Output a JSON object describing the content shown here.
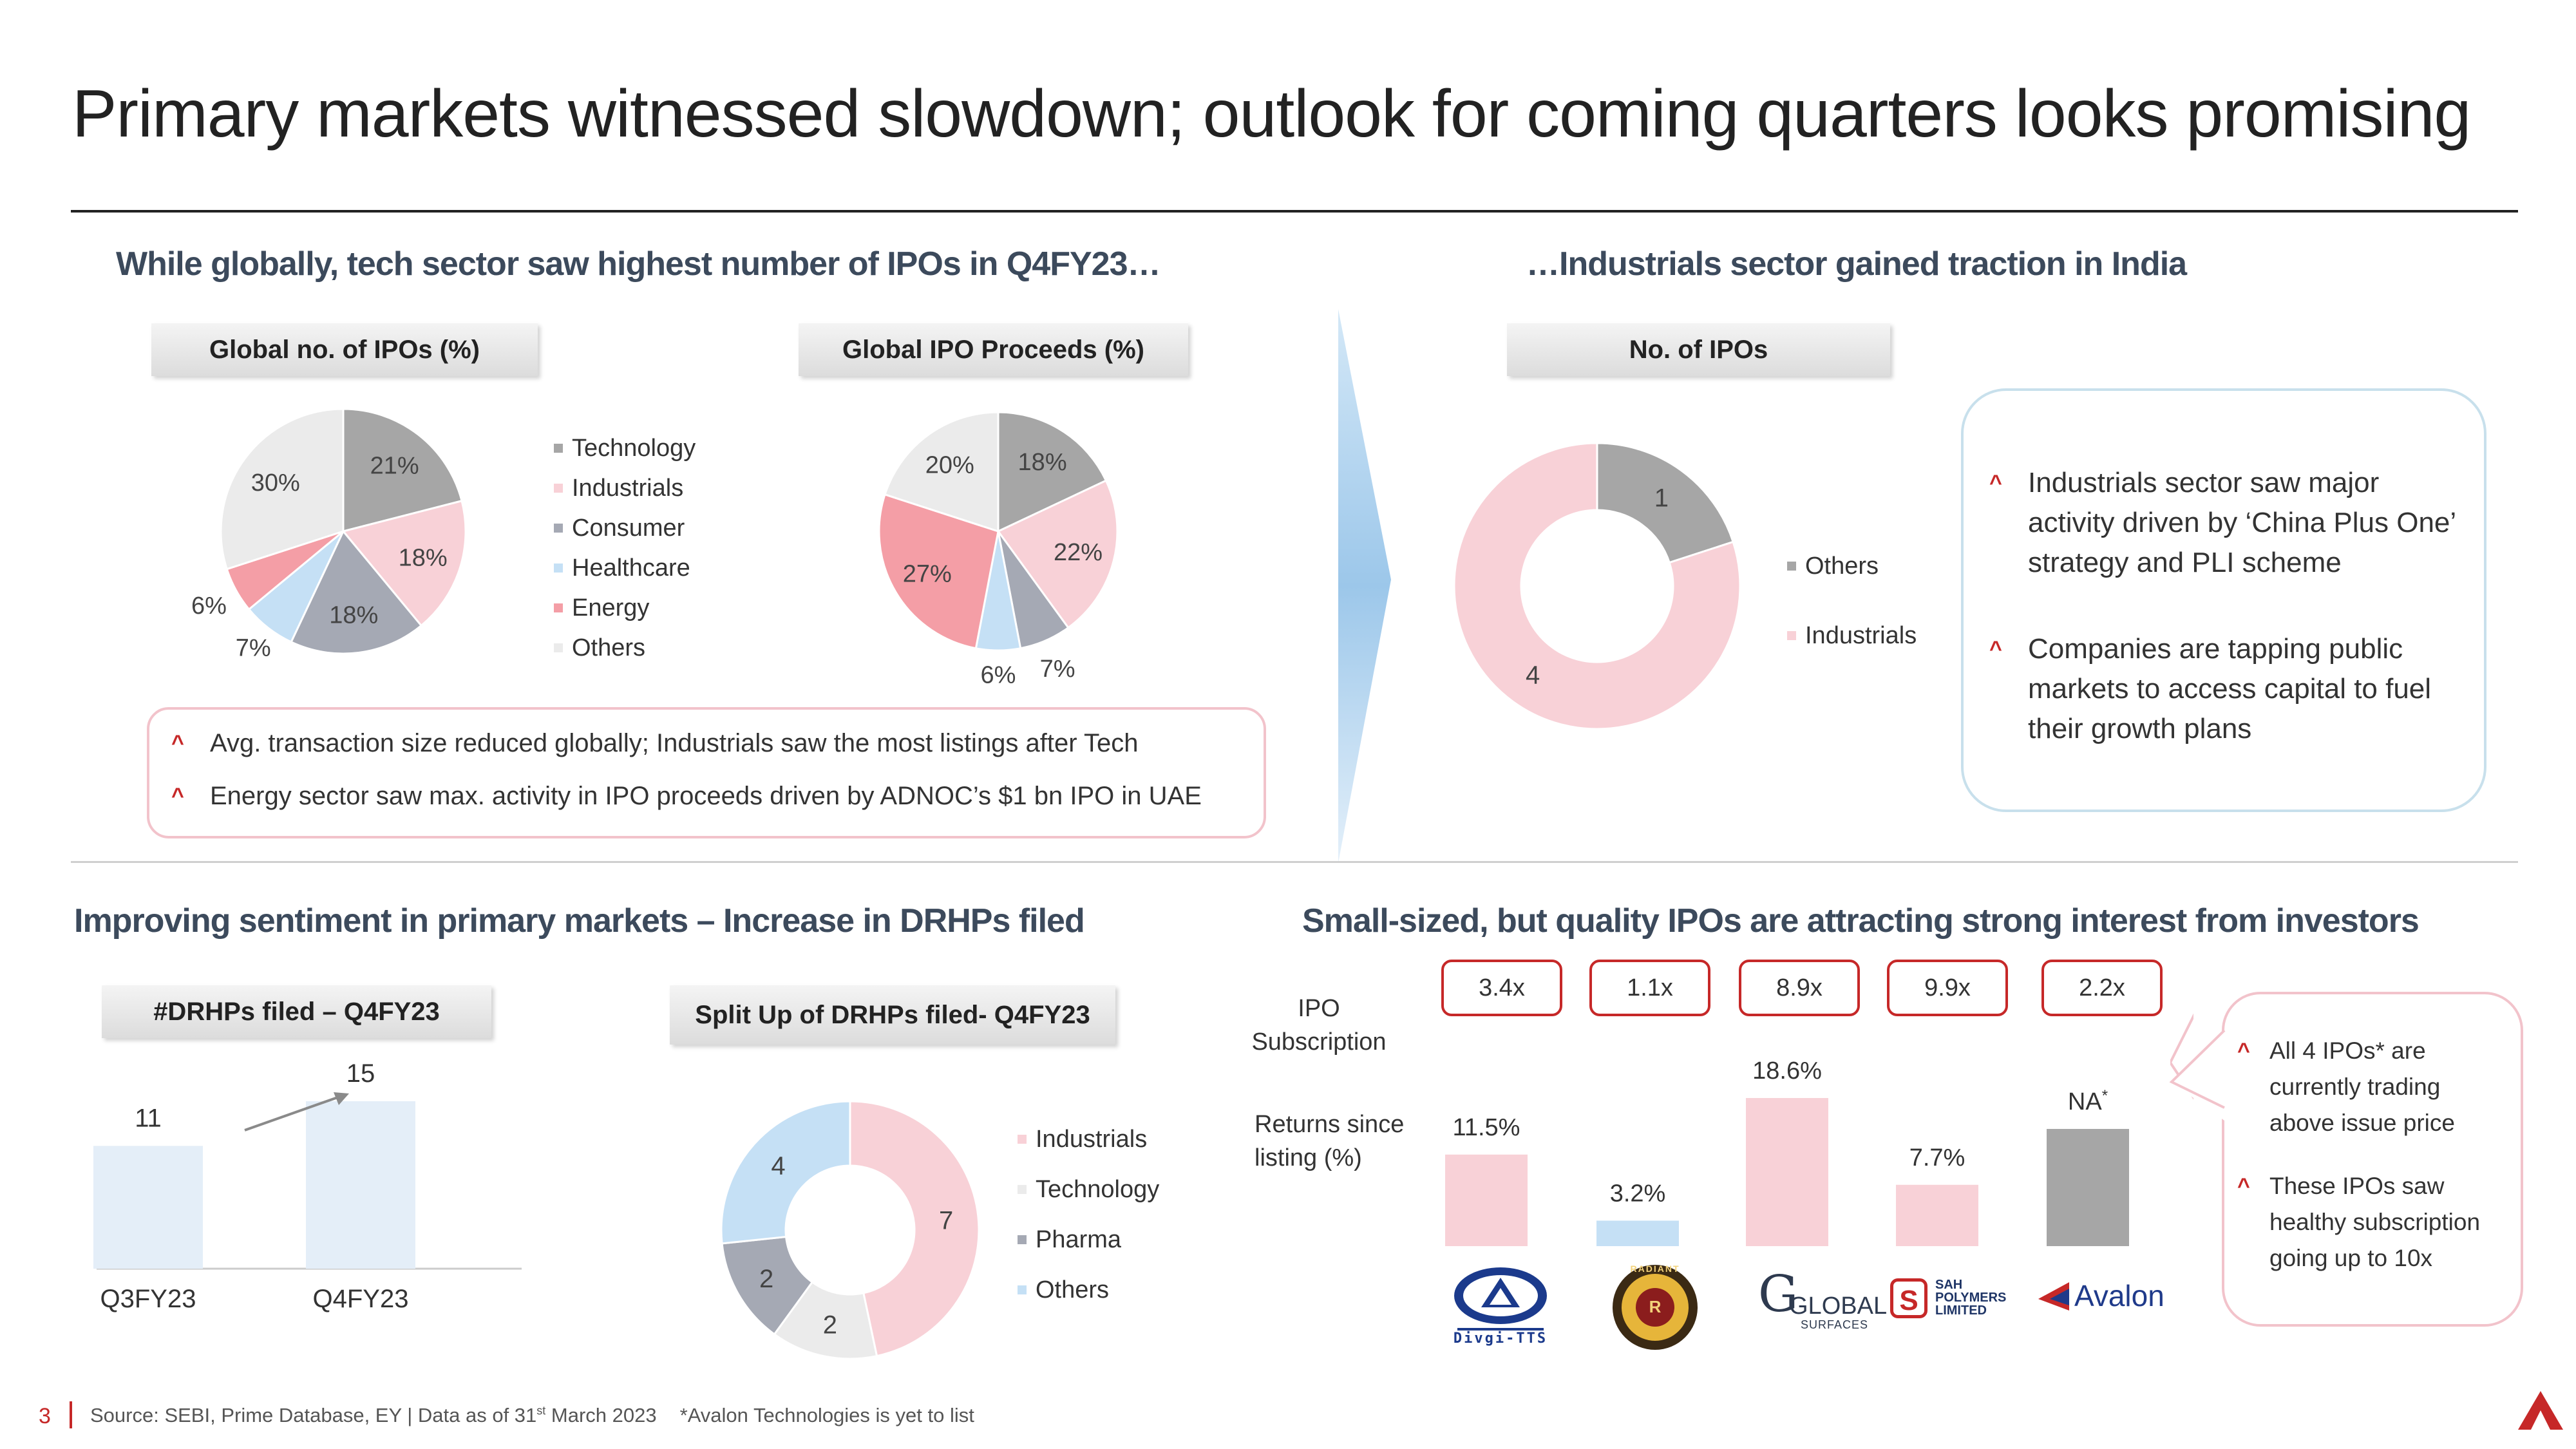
{
  "page": {
    "title": "Primary markets witnessed slowdown; outlook for coming quarters looks promising",
    "page_number": "3",
    "source_prefix": "Source: SEBI, Prime Database, EY | Data as of 31",
    "source_sup": "st",
    "source_suffix": " March 2023",
    "source_note": "*Avalon Technologies is yet to list"
  },
  "top_left": {
    "heading": "While globally, tech sector saw highest number of IPOs in Q4FY23…",
    "callout": [
      "Avg. transaction size reduced globally; Industrials saw the most listings after Tech",
      "Energy sector saw max. activity in IPO proceeds driven by ADNOC’s $1 bn IPO in UAE"
    ]
  },
  "top_right": {
    "heading": "…Industrials sector gained traction in India",
    "callout": [
      "Industrials sector saw major activity driven by ‘China Plus One’ strategy and PLI scheme",
      "Companies are tapping public markets to access capital to fuel their growth plans"
    ]
  },
  "bottom_left": {
    "heading": "Improving sentiment in primary markets – Increase in DRHPs filed"
  },
  "bottom_right": {
    "heading": "Small-sized, but quality IPOs are attracting strong interest from investors",
    "row1_label": "IPO Subscription",
    "row2_label": "Returns since listing (%)",
    "subscriptions": [
      "3.4x",
      "1.1x",
      "8.9x",
      "9.9x",
      "2.2x"
    ],
    "na_label": "NA",
    "na_sup": "*",
    "logos": [
      "Divgi-TTS",
      "RADIANT",
      "GLOBAL",
      "SURFACES",
      "SAH",
      "POLYMERS",
      "LIMITED",
      "Avalon"
    ],
    "callout": [
      "All 4 IPOs* are currently trading above issue price",
      "These IPOs saw healthy subscription going up to 10x"
    ]
  },
  "colors": {
    "gray_dark": "#a6a6a6",
    "pink": "#f8d1d7",
    "gray_mid": "#a5a9b4",
    "light_blue": "#c5e0f5",
    "red_pink": "#f49ea6",
    "light_gray": "#ebebeb",
    "bar_light": "#e4eef8",
    "accent_red": "#c62828"
  },
  "chart_data": [
    {
      "type": "pie",
      "title": "Global no. of IPOs (%)",
      "categories": [
        "Technology",
        "Industrials",
        "Consumer",
        "Healthcare",
        "Energy",
        "Others"
      ],
      "values": [
        21,
        18,
        18,
        7,
        6,
        30
      ],
      "labels": [
        "21%",
        "18%",
        "18%",
        "7%",
        "6%",
        "30%"
      ],
      "legend": "right"
    },
    {
      "type": "pie",
      "title": "Global IPO Proceeds (%)",
      "categories": [
        "Technology",
        "Industrials",
        "Consumer",
        "Healthcare",
        "Energy",
        "Others"
      ],
      "values": [
        18,
        22,
        7,
        6,
        27,
        20
      ],
      "labels": [
        "18%",
        "22%",
        "7%",
        "6%",
        "27%",
        "20%"
      ]
    },
    {
      "type": "pie",
      "title": "No. of IPOs",
      "categories": [
        "Others",
        "Industrials"
      ],
      "values": [
        1,
        4
      ],
      "labels": [
        "1",
        "4"
      ],
      "legend": "right"
    },
    {
      "type": "bar",
      "title": "#DRHPs filed – Q4FY23",
      "categories": [
        "Q3FY23",
        "Q4FY23"
      ],
      "values": [
        11,
        15
      ],
      "labels": [
        "11",
        "15"
      ]
    },
    {
      "type": "pie",
      "title": "Split Up of DRHPs filed- Q4FY23",
      "categories": [
        "Industrials",
        "Technology",
        "Pharma",
        "Others"
      ],
      "values": [
        7,
        2,
        2,
        4
      ],
      "labels": [
        "7",
        "2",
        "2",
        "4"
      ],
      "legend": "right"
    },
    {
      "type": "bar",
      "title": "Returns since listing (%)",
      "categories": [
        "Divgi-TTS",
        "Radiant",
        "Global Surfaces",
        "Sah Polymers",
        "Avalon"
      ],
      "values": [
        11.5,
        3.2,
        18.6,
        7.7,
        null
      ],
      "labels": [
        "11.5%",
        "3.2%",
        "18.6%",
        "7.7%",
        "NA"
      ]
    }
  ]
}
